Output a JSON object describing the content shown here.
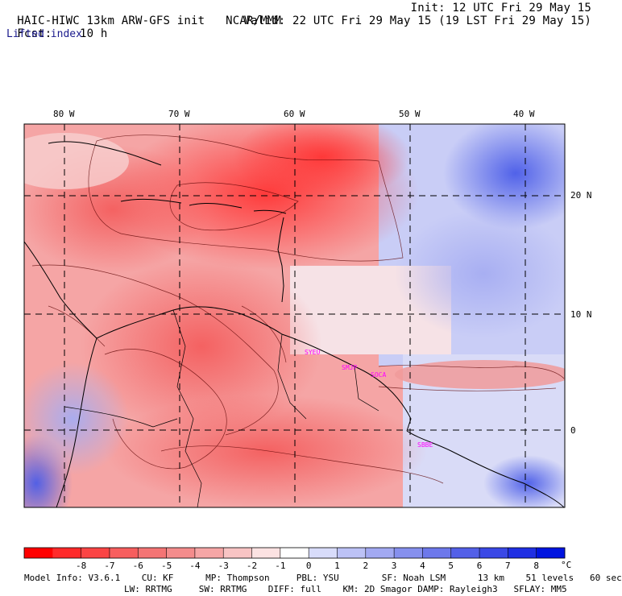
{
  "header": {
    "model_title": "HAIC-HIWC 13km ARW-GFS init",
    "org": "NCAR/MMM",
    "forecast_label": "Fcst:",
    "forecast_value": "10 h",
    "init_text": "Init: 12 UTC Fri 29 May 15",
    "valid_text": "Valid: 22 UTC Fri 29 May 15 (19 LST Fri 29 May 15)",
    "field_name": "Lifted index"
  },
  "map": {
    "lon_labels": [
      "80 W",
      "70 W",
      "60 W",
      "50 W",
      "40 W"
    ],
    "lat_labels": [
      "20 N",
      "10 N",
      "0"
    ],
    "stations": [
      "SYEU",
      "SMJP",
      "SOCA",
      "SBBE"
    ],
    "colors": {
      "neg_strong": "#ff2222",
      "neg_mid": "#f26a6a",
      "neg_light": "#f5b8b8",
      "neutral": "#fdf3f3",
      "pos_light": "#d9dcfa",
      "pos_mid": "#9aa4f2",
      "pos_strong": "#3a4ee8",
      "station": "#ff00ff"
    }
  },
  "colorbar": {
    "ticks": [
      "-8",
      "-7",
      "-6",
      "-5",
      "-4",
      "-3",
      "-2",
      "-1",
      "0",
      "1",
      "2",
      "3",
      "4",
      "5",
      "6",
      "7",
      "8"
    ],
    "unit": "°C",
    "colors": [
      "#ff0000",
      "#ff2a2a",
      "#fb4444",
      "#f75e5e",
      "#f47474",
      "#f48c8c",
      "#f6a6a6",
      "#f8c4c4",
      "#fce2e2",
      "#ffffff",
      "#d8dcfa",
      "#bcc2f6",
      "#a2a9f2",
      "#8690ee",
      "#6d78eb",
      "#5360e8",
      "#3a48e6",
      "#1f2fe3",
      "#0014e0"
    ]
  },
  "footer": {
    "line1": "Model Info: V3.6.1    CU: KF      MP: Thompson     PBL: YSU        SF: Noah LSM      13 km    51 levels   60 sec",
    "line2": "LW: RRTMG     SW: RRTMG    DIFF: full    KM: 2D Smagor DAMP: Rayleigh3   SFLAY: MM5"
  }
}
